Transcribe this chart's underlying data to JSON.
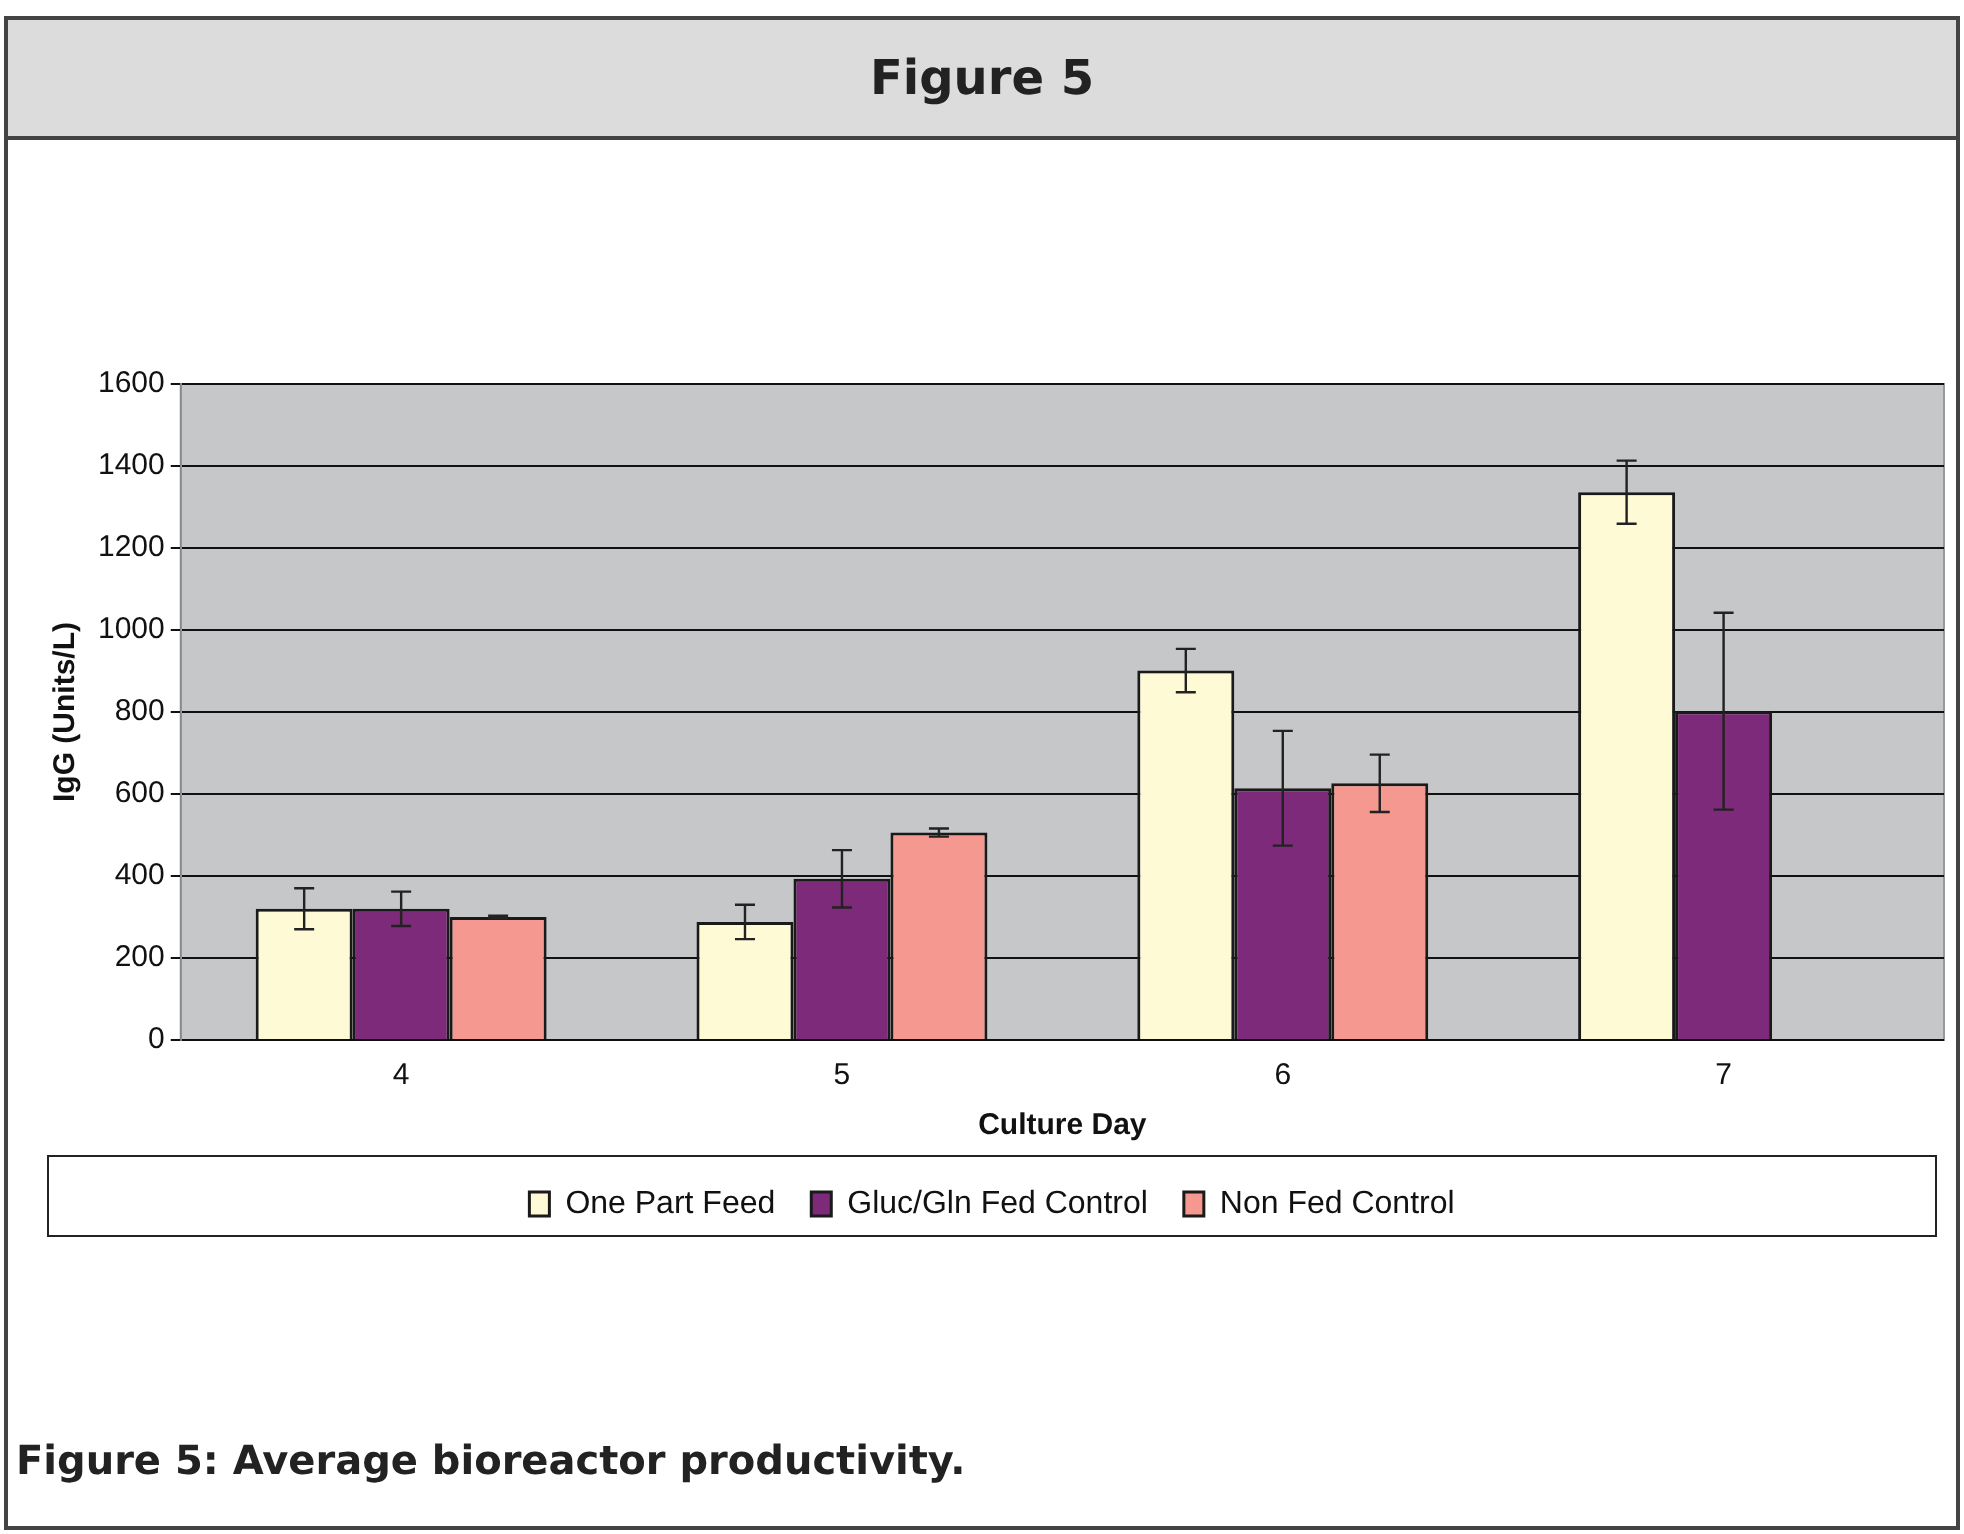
{
  "chart_data": {
    "type": "bar",
    "title": "Figure 5",
    "xlabel": "Culture Day",
    "ylabel": "IgG (Units/L)",
    "annotations": [
      "Figure 5: Average bioreactor productivity."
    ],
    "categories": [
      "4",
      "5",
      "6",
      "7"
    ],
    "series": [
      {
        "name": "One Part Feed",
        "color": "#fffad6",
        "values": [
          320,
          288,
          901,
          1336
        ],
        "errors": [
          50,
          42,
          53,
          77
        ]
      },
      {
        "name": "Gluc/Gln Fed Control",
        "color": "#7e2a7a",
        "values": [
          320,
          393,
          614,
          802
        ],
        "errors": [
          42,
          70,
          140,
          240
        ]
      },
      {
        "name": "Non Fed Control",
        "color": "#f59890",
        "values": [
          300,
          506,
          626,
          null
        ],
        "errors": [
          3,
          10,
          70,
          null
        ]
      }
    ],
    "ylim": [
      0,
      1600
    ],
    "yticks": [
      0,
      200,
      400,
      600,
      800,
      1000,
      1200,
      1400,
      1600
    ],
    "grid": "y",
    "legend": "bottom"
  }
}
